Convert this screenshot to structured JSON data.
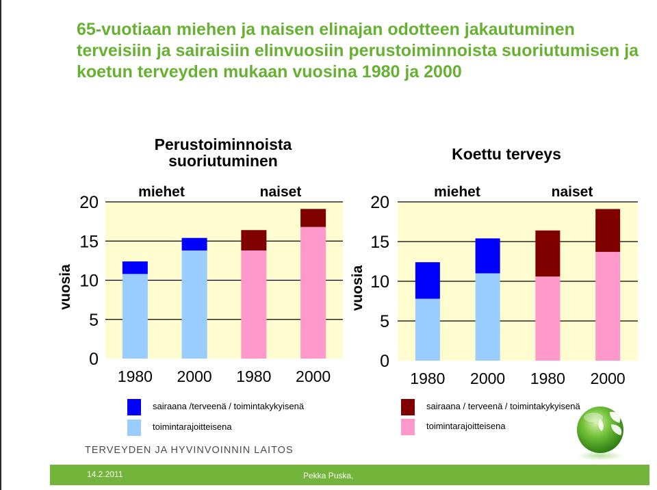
{
  "slide": {
    "title": "65-vuotiaan miehen ja naisen elinajan odotteen jakautuminen terveisiin ja sairaisiin elinvuosiin perustoiminnoista suoriutumisen ja koetun terveyden mukaan vuosina 1980 ja 2000",
    "org_name": "TERVEYDEN JA HYVINVOINNIN LAITOS",
    "date": "14.2.2011",
    "author": "Pekka Puska,"
  },
  "colors": {
    "title": "#66b132",
    "plot_bg": "#fffccf",
    "men_lower": "#99ccff",
    "men_upper": "#0000ff",
    "women_lower": "#ff99cc",
    "women_upper": "#800000",
    "footer": "#72b53a"
  },
  "chart_data": [
    {
      "type": "bar",
      "stacked": true,
      "title": "Perustoiminnoista suoriutuminen",
      "title_lines": [
        "Perustoiminnoista",
        "suoriutuminen"
      ],
      "ylabel": "vuosia",
      "ylim": [
        0,
        20
      ],
      "yticks": [
        0,
        5,
        10,
        15,
        20
      ],
      "grid": true,
      "groups": [
        "miehet",
        "naiset"
      ],
      "categories": [
        "1980",
        "2000",
        "1980",
        "2000"
      ],
      "category_group": [
        "miehet",
        "miehet",
        "naiset",
        "naiset"
      ],
      "series": [
        {
          "name": "toimintarajoitteisena",
          "values": [
            10.8,
            13.8,
            13.8,
            16.8
          ]
        },
        {
          "name": "sairaana /terveenä / toimintakykyisenä",
          "values": [
            1.6,
            1.6,
            2.6,
            2.3
          ]
        }
      ],
      "totals": [
        12.4,
        15.4,
        16.4,
        19.1
      ],
      "legend": [
        {
          "label": "sairaana /terveenä / toimintakykyisenä",
          "color": "#0000ff"
        },
        {
          "label": "toimintarajoitteisena",
          "color": "#99ccff"
        }
      ]
    },
    {
      "type": "bar",
      "stacked": true,
      "title": "Koettu terveys",
      "title_lines": [
        "Koettu terveys"
      ],
      "ylabel": "vuosia",
      "ylim": [
        0,
        20
      ],
      "yticks": [
        0,
        5,
        10,
        15,
        20
      ],
      "grid": true,
      "groups": [
        "miehet",
        "naiset"
      ],
      "categories": [
        "1980",
        "2000",
        "1980",
        "2000"
      ],
      "category_group": [
        "miehet",
        "miehet",
        "naiset",
        "naiset"
      ],
      "series": [
        {
          "name": "toimintarajoitteisena",
          "values": [
            7.8,
            11.0,
            10.6,
            13.7
          ]
        },
        {
          "name": "sairaana / terveenä / toimintakykyisenä",
          "values": [
            4.6,
            4.4,
            5.8,
            5.4
          ]
        }
      ],
      "totals": [
        12.4,
        15.4,
        16.4,
        19.1
      ],
      "legend": [
        {
          "label": "sairaana / terveenä / toimintakykyisenä",
          "color": "#800000"
        },
        {
          "label": "toimintarajoitteisena",
          "color": "#ff99cc"
        }
      ]
    }
  ]
}
